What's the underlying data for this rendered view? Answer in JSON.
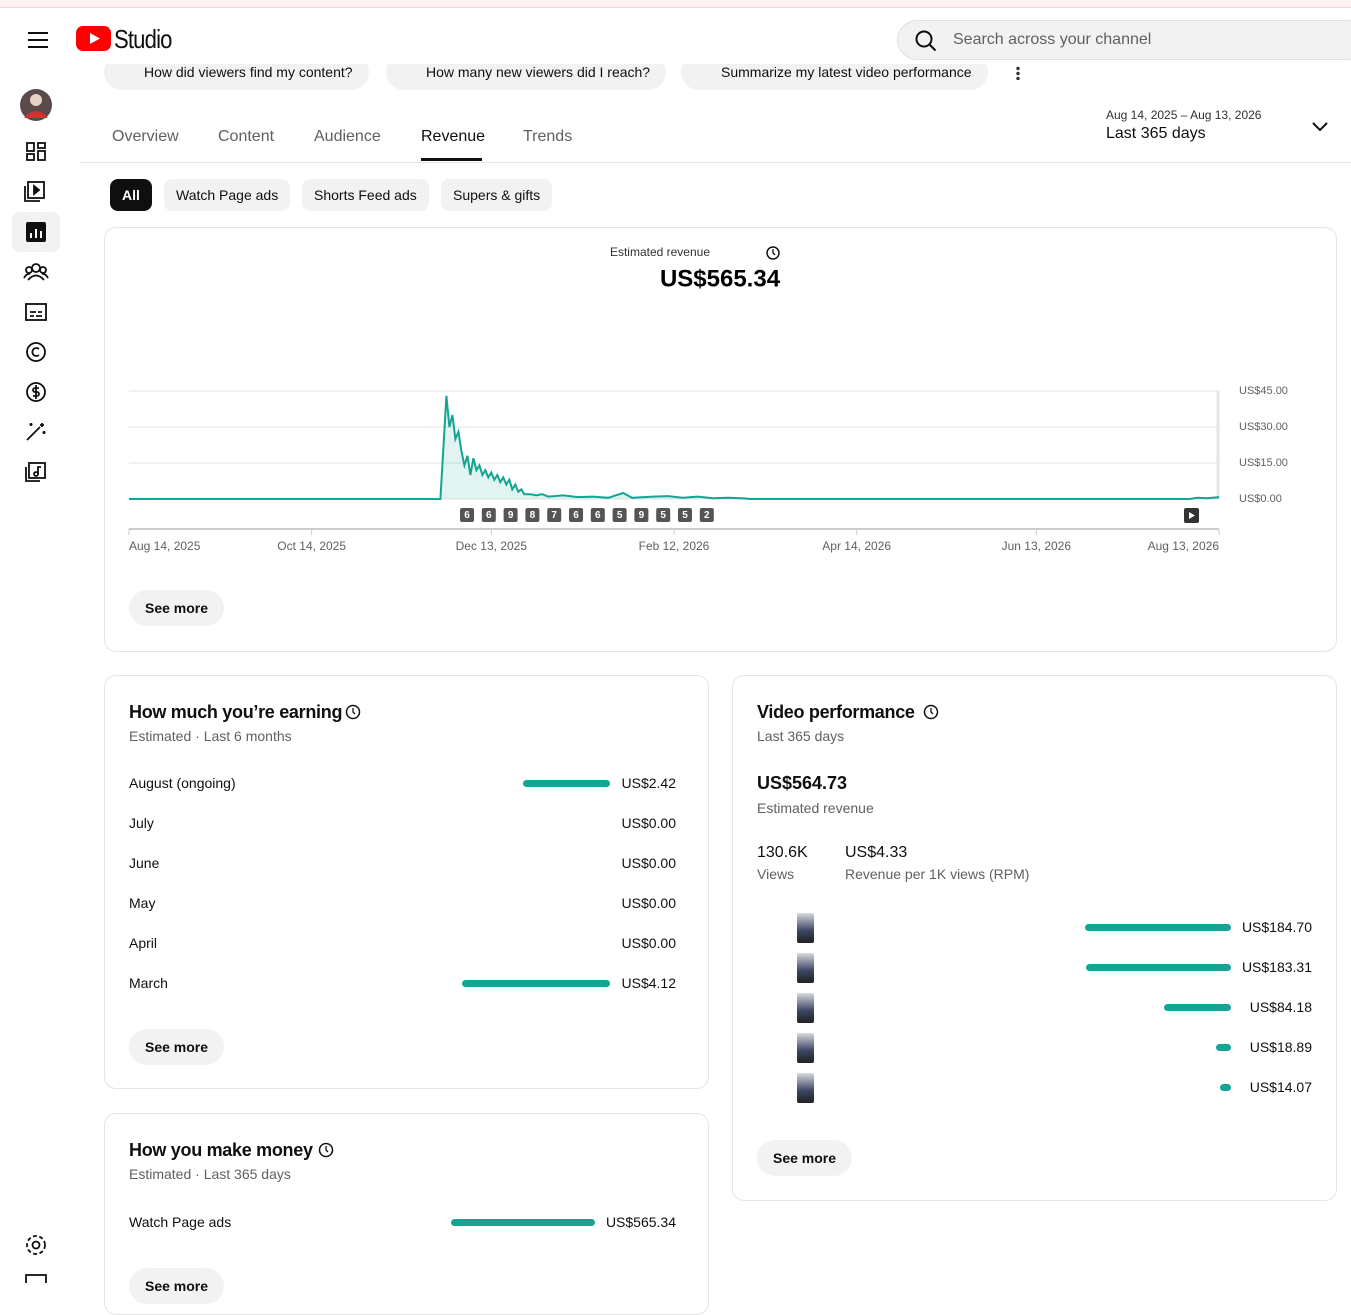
{
  "header": {
    "logo": "Studio",
    "search_placeholder": "Search across your channel"
  },
  "suggestions": [
    "How did viewers find my content?",
    "How many new viewers did I reach?",
    "Summarize my latest video performance"
  ],
  "tabs": {
    "items": [
      "Overview",
      "Content",
      "Audience",
      "Revenue",
      "Trends"
    ],
    "active": 3
  },
  "date_range": {
    "range": "Aug 14, 2025 – Aug 13, 2026",
    "label": "Last 365 days"
  },
  "filters": {
    "items": [
      "All",
      "Watch Page ads",
      "Shorts Feed ads",
      "Supers & gifts"
    ],
    "active": 0
  },
  "revenue_chart": {
    "type": "line",
    "title": "Estimated revenue",
    "total": "US$565.34",
    "color": "#12a594",
    "grid": true,
    "x": [
      0,
      104,
      106,
      107,
      108,
      109,
      110,
      111,
      112,
      113,
      114,
      115,
      116,
      117,
      118,
      119,
      120,
      121,
      122,
      123,
      124,
      125,
      126,
      127,
      128,
      129,
      130,
      131,
      132,
      134,
      136,
      138,
      140,
      145,
      150,
      155,
      160,
      165,
      168,
      175,
      180,
      185,
      190,
      195,
      200,
      206,
      207,
      354,
      357,
      360,
      364
    ],
    "values": [
      0,
      0,
      43,
      30,
      35,
      25,
      28,
      20,
      14,
      18,
      10,
      17,
      12,
      14,
      10,
      12,
      9,
      11,
      8,
      10,
      7,
      9,
      6,
      8,
      4,
      6,
      3,
      4,
      2,
      2,
      1.5,
      2,
      1,
      1.5,
      0.8,
      1,
      0.5,
      2.5,
      0.5,
      1,
      1.2,
      0.5,
      1,
      0.3,
      0.5,
      0.2,
      0,
      0,
      0.5,
      0.3,
      0.8
    ],
    "xlim": [
      0,
      364
    ],
    "xticks": [
      {
        "value": 0,
        "label": "Aug 14, 2025"
      },
      {
        "value": 61,
        "label": "Oct 14, 2025"
      },
      {
        "value": 121,
        "label": "Dec 13, 2025"
      },
      {
        "value": 182,
        "label": "Feb 12, 2026"
      },
      {
        "value": 243,
        "label": "Apr 14, 2026"
      },
      {
        "value": 303,
        "label": "Jun 13, 2026"
      },
      {
        "value": 364,
        "label": "Aug 13, 2026"
      }
    ],
    "ylim": [
      0,
      45
    ],
    "yticks": [
      {
        "value": 0,
        "label": "US$0.00"
      },
      {
        "value": 15,
        "label": "US$15.00"
      },
      {
        "value": 30,
        "label": "US$30.00"
      },
      {
        "value": 45,
        "label": "US$45.00"
      }
    ],
    "upload_counts": [
      6,
      6,
      9,
      8,
      7,
      6,
      6,
      5,
      9,
      5,
      5,
      2
    ],
    "button": "See more"
  },
  "earnings": {
    "title": "How much you’re earning",
    "subtitle": "Estimated · Last 6 months",
    "categories": [
      "August (ongoing)",
      "July",
      "June",
      "May",
      "April",
      "March"
    ],
    "values": [
      2.42,
      0,
      0,
      0,
      0,
      4.12
    ],
    "value_labels": [
      "US$2.42",
      "US$0.00",
      "US$0.00",
      "US$0.00",
      "US$0.00",
      "US$4.12"
    ],
    "color": "#12a594",
    "button": "See more"
  },
  "video_performance": {
    "title": "Video performance",
    "subtitle": "Last 365 days",
    "total": "US$564.73",
    "total_label": "Estimated revenue",
    "stats": [
      {
        "value": "130.6K",
        "label": "Views"
      },
      {
        "value": "US$4.33",
        "label": "Revenue per 1K views (RPM)"
      }
    ],
    "values": [
      184.7,
      183.31,
      84.18,
      18.89,
      14.07
    ],
    "value_labels": [
      "US$184.70",
      "US$183.31",
      "US$84.18",
      "US$18.89",
      "US$14.07"
    ],
    "color": "#12a594",
    "button": "See more"
  },
  "money_sources": {
    "title": "How you make money",
    "subtitle": "Estimated · Last 365 days",
    "categories": [
      "Watch Page ads"
    ],
    "values": [
      565.34
    ],
    "value_labels": [
      "US$565.34"
    ],
    "color": "#12a594",
    "button": "See more"
  }
}
